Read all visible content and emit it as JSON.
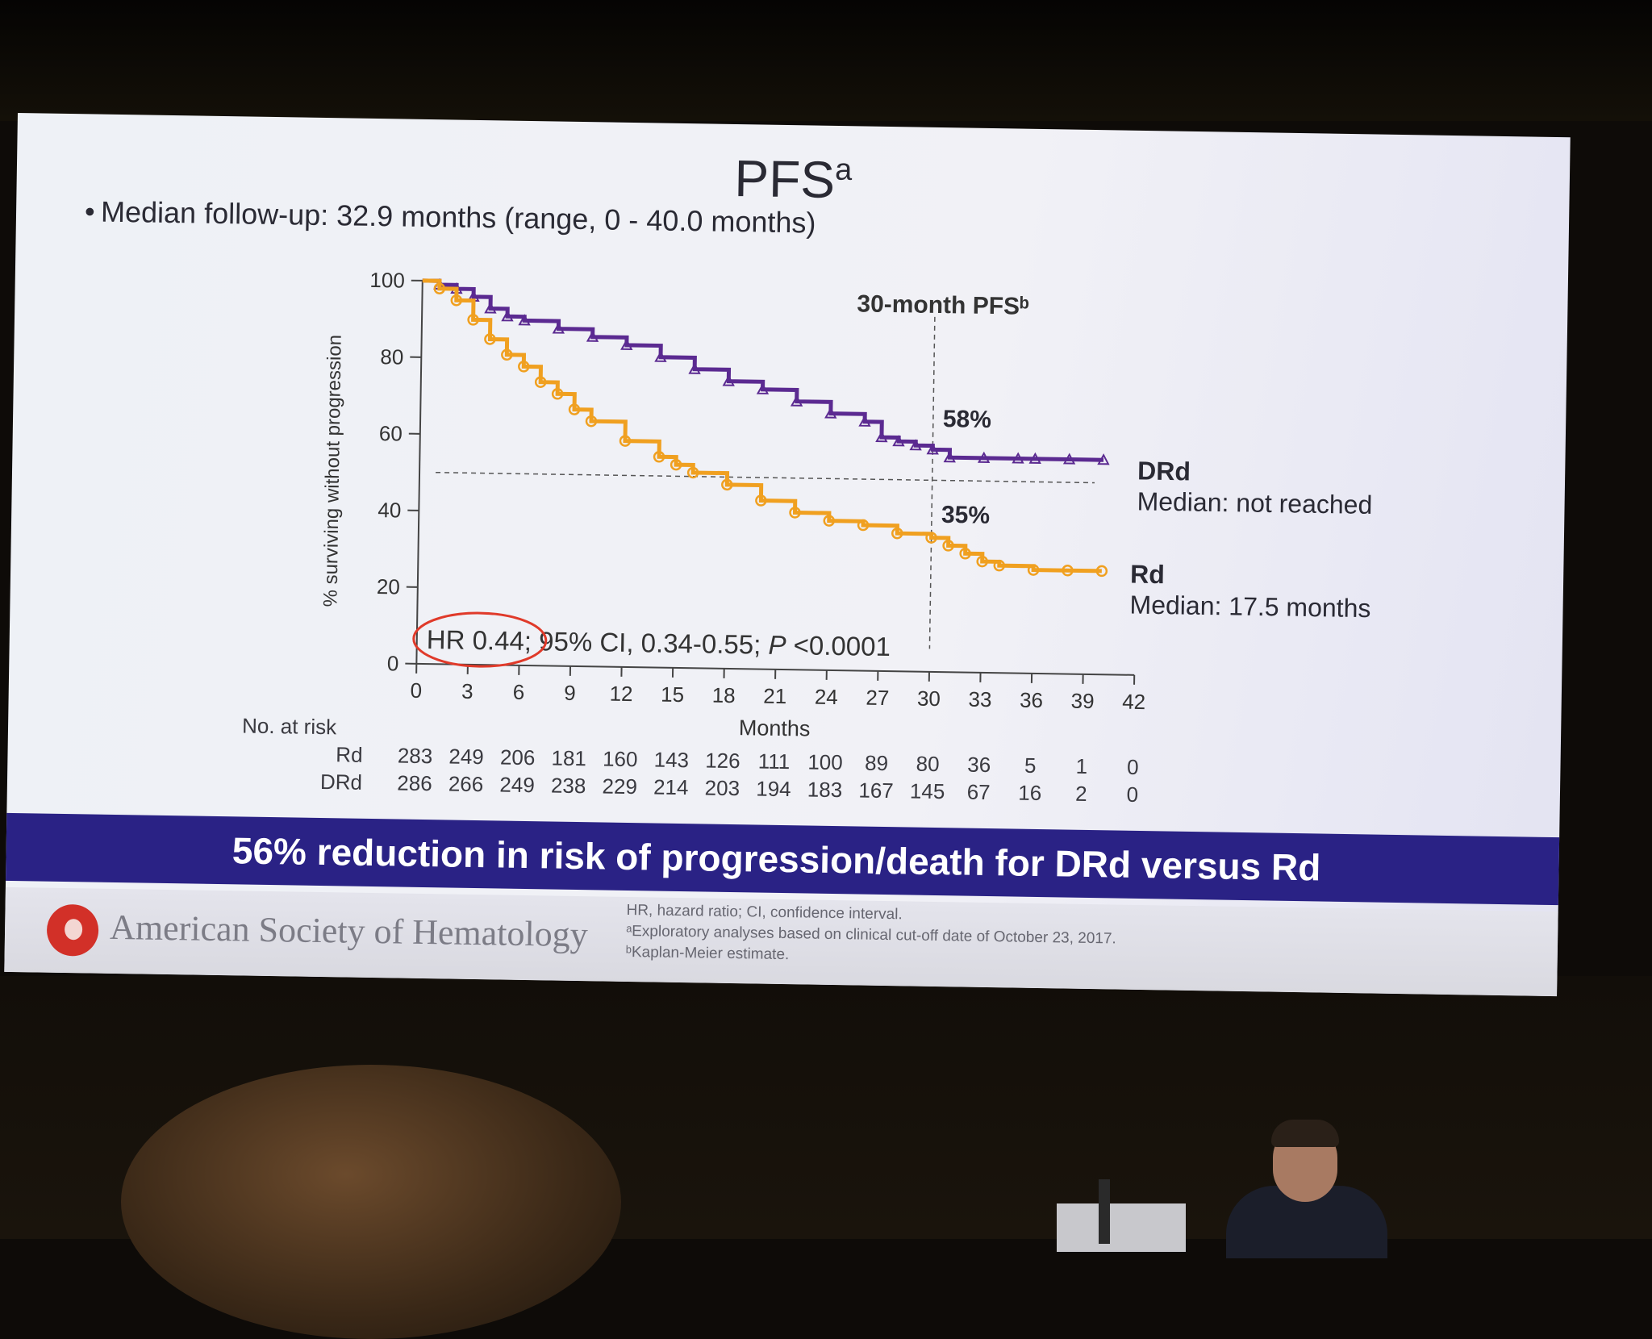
{
  "slide": {
    "title": "PFS",
    "title_sup": "a",
    "bullet_mark": "•",
    "bullet": "Median follow-up: 32.9 months (range, 0 - 40.0 months)",
    "band_text": "56% reduction in risk of progression/death for DRd versus Rd",
    "org_name": "American Society of Hematology",
    "footnotes": [
      "HR, hazard ratio; CI, confidence interval.",
      "ᵃExploratory analyses based on clinical cut-off date of October 23, 2017.",
      "ᵇKaplan-Meier estimate."
    ]
  },
  "chart_data": {
    "type": "line",
    "xlabel": "Months",
    "ylabel": "% surviving without progression",
    "xlim": [
      0,
      42
    ],
    "ylim": [
      0,
      100
    ],
    "xticks": [
      0,
      3,
      6,
      9,
      12,
      15,
      18,
      21,
      24,
      27,
      30,
      33,
      36,
      39,
      42
    ],
    "yticks": [
      0,
      20,
      40,
      60,
      80,
      100
    ],
    "reference_lines": {
      "y": 50,
      "x": 30
    },
    "annotation_header": "30-month PFSᵇ",
    "hr_highlight": "HR 0.44",
    "hr_rest": "; 95% CI, 0.34-0.55; ",
    "hr_p_label": "P",
    "hr_p_value": " <0.0001",
    "series": [
      {
        "name": "DRd",
        "median_label": "Median: not reached",
        "pfs30_label": "58%",
        "color": "#5b2a91",
        "x": [
          0,
          1,
          2,
          3,
          4,
          5,
          6,
          8,
          10,
          12,
          14,
          16,
          18,
          20,
          22,
          24,
          26,
          27,
          28,
          29,
          30,
          31,
          33,
          35,
          36,
          38,
          40
        ],
        "y": [
          100,
          99,
          98,
          96,
          93,
          91,
          90,
          88,
          86,
          84,
          81,
          78,
          75,
          73,
          70,
          67,
          65,
          61,
          60,
          59,
          58,
          56,
          56,
          56,
          56,
          56,
          56
        ]
      },
      {
        "name": "Rd",
        "median_label": "Median: 17.5 months",
        "pfs30_label": "35%",
        "color": "#f0a020",
        "x": [
          0,
          1,
          2,
          3,
          4,
          5,
          6,
          7,
          8,
          9,
          10,
          12,
          14,
          15,
          16,
          18,
          20,
          22,
          24,
          26,
          28,
          30,
          31,
          32,
          33,
          34,
          36,
          38,
          40
        ],
        "y": [
          100,
          98,
          95,
          90,
          85,
          81,
          78,
          74,
          71,
          67,
          64,
          59,
          55,
          53,
          51,
          48,
          44,
          41,
          39,
          38,
          36,
          35,
          33,
          31,
          29,
          28,
          27,
          27,
          27
        ]
      }
    ]
  },
  "risk_table": {
    "header": "No. at risk",
    "rows": [
      {
        "label": "Rd",
        "values": [
          "283",
          "249",
          "206",
          "181",
          "160",
          "143",
          "126",
          "111",
          "100",
          "89",
          "80",
          "36",
          "5",
          "1",
          "0"
        ]
      },
      {
        "label": "DRd",
        "values": [
          "286",
          "266",
          "249",
          "238",
          "229",
          "214",
          "203",
          "194",
          "183",
          "167",
          "145",
          "67",
          "16",
          "2",
          "0"
        ]
      }
    ]
  }
}
